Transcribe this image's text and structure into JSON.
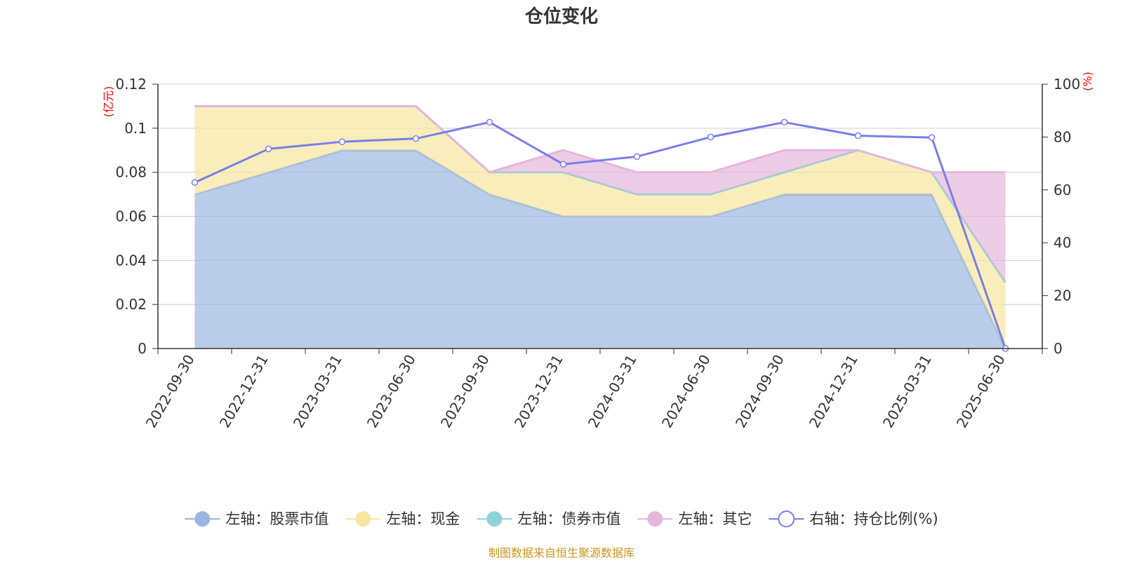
{
  "chart_data": {
    "type": "area",
    "title": "仓位变化",
    "categories": [
      "2022-09-30",
      "2022-12-31",
      "2023-03-31",
      "2023-06-30",
      "2023-09-30",
      "2023-12-31",
      "2024-03-31",
      "2024-06-30",
      "2024-09-30",
      "2024-12-31",
      "2025-03-31",
      "2025-06-30"
    ],
    "left_axis": {
      "unit": "(亿元)",
      "ylim": [
        0,
        0.12
      ],
      "ticks": [
        "0",
        "0.02",
        "0.04",
        "0.06",
        "0.08",
        "0.1",
        "0.12"
      ]
    },
    "right_axis": {
      "unit": "(%)",
      "ylim": [
        0,
        100
      ],
      "ticks": [
        "0",
        "20",
        "40",
        "60",
        "80",
        "100"
      ]
    },
    "series": [
      {
        "name": "左轴：股票市值",
        "axis": "left",
        "kind": "stacked-area",
        "color": "#9bb7e0",
        "values": [
          0.07,
          0.08,
          0.09,
          0.09,
          0.07,
          0.06,
          0.06,
          0.06,
          0.07,
          0.07,
          0.07,
          0
        ]
      },
      {
        "name": "左轴：现金",
        "axis": "left",
        "kind": "stacked-area",
        "color": "#f8e6a0",
        "values": [
          0.04,
          0.03,
          0.02,
          0.02,
          0.01,
          0.02,
          0.01,
          0.01,
          0.01,
          0.02,
          0.01,
          0.03
        ]
      },
      {
        "name": "左轴：债券市值",
        "axis": "left",
        "kind": "stacked-area",
        "color": "#8fd3d6",
        "values": [
          0,
          0,
          0,
          0,
          0,
          0,
          0,
          0,
          0,
          0,
          0,
          0
        ]
      },
      {
        "name": "左轴：其它",
        "axis": "left",
        "kind": "stacked-area",
        "color": "#e6b6dc",
        "values": [
          0,
          0,
          0,
          0,
          0,
          0.01,
          0.01,
          0.01,
          0.01,
          0,
          0,
          0.05
        ]
      },
      {
        "name": "右轴：持仓比例(%)",
        "axis": "right",
        "kind": "line",
        "color": "#7a7ee8",
        "values": [
          62.8,
          75.5,
          78.2,
          79.4,
          85.6,
          69.7,
          72.6,
          80.0,
          85.6,
          80.5,
          79.8,
          0
        ]
      }
    ],
    "grid": true,
    "legend": "bottom-center"
  },
  "source": "制图数据来自恒生聚源数据库"
}
